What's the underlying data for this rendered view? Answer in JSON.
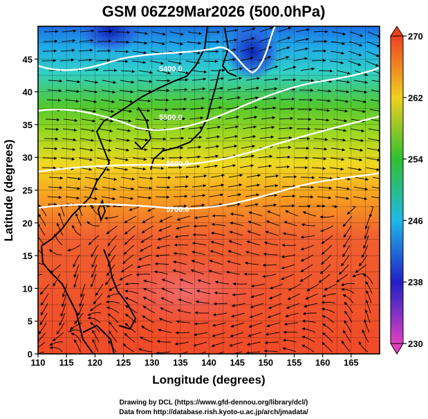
{
  "title": "GSM 06Z29Mar2026 (500.0hPa)",
  "xlabel": "Longitude (degrees)",
  "ylabel": "Latitude  (degrees)",
  "credits": {
    "line1": "Drawing by DCL (https://www.gfd-dennou.org/library/dcl/)",
    "line2": "Data from http://database.rish.kyoto-u.ac.jp/arch/jmadata/"
  },
  "axes": {
    "x_ticks": [
      "110",
      "115",
      "120",
      "125",
      "130",
      "135",
      "140",
      "145",
      "150",
      "155",
      "160",
      "165"
    ],
    "y_ticks": [
      "0",
      "5",
      "10",
      "15",
      "20",
      "25",
      "30",
      "35",
      "40",
      "45"
    ],
    "lon_range": [
      110,
      170
    ],
    "lat_range": [
      0,
      50
    ]
  },
  "colorbar": {
    "ticks": [
      "230",
      "238",
      "246",
      "254",
      "262",
      "270"
    ],
    "range": [
      230,
      270
    ],
    "colors": [
      "#e040c0",
      "#2020c8",
      "#20b8e8",
      "#30c030",
      "#f0d020",
      "#f04020"
    ]
  },
  "contours": [
    {
      "label": "5700.0",
      "value": 5700
    },
    {
      "label": "5600.0",
      "value": 5600
    },
    {
      "label": "5500.0",
      "value": 5500
    },
    {
      "label": "5400.0",
      "value": 5400
    }
  ],
  "colors": {
    "contour": "#ffffff",
    "streamline": "#000000",
    "coast": "#000000"
  }
}
